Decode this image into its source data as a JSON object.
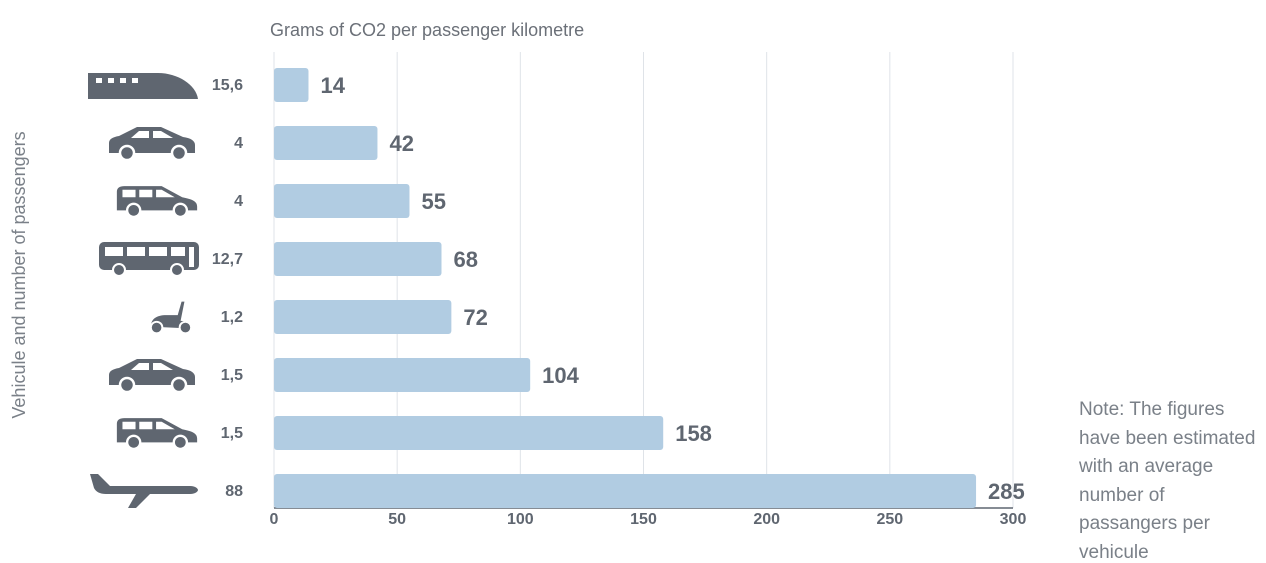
{
  "chart_data": {
    "type": "bar",
    "orientation": "horizontal",
    "title": "Grams of CO2 per passenger kilometre",
    "y_label": "Vehicule and number of passengers",
    "categories": [
      "15,6",
      "4",
      "4",
      "12,7",
      "1,2",
      "1,5",
      "1,5",
      "88"
    ],
    "values": [
      14,
      42,
      55,
      68,
      72,
      104,
      158,
      285
    ],
    "color": "#b1cce2",
    "xlim": [
      0,
      300
    ],
    "xticks": [
      0,
      50,
      100,
      150,
      200,
      250,
      300
    ],
    "grid": true,
    "note": "Note: The figures have been estimated with an average number of passangers per vehicule"
  }
}
